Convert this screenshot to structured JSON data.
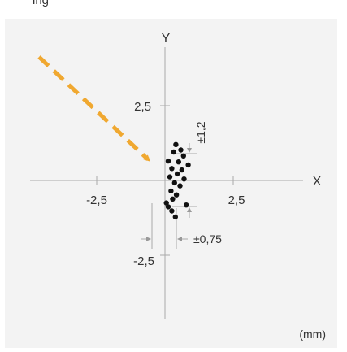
{
  "header_fragment": "ing",
  "chart_data": {
    "type": "scatter",
    "title": "",
    "xlabel": "X",
    "ylabel": "Y",
    "unit_label": "(mm)",
    "xlim": [
      -4.5,
      6.0
    ],
    "ylim": [
      -7.5,
      7.2
    ],
    "grid": false,
    "x_ticks": [
      {
        "value": -2.5,
        "label": "-2,5"
      },
      {
        "value": 2.5,
        "label": "2,5"
      }
    ],
    "y_ticks": [
      {
        "value": 2.5,
        "label": "2,5"
      },
      {
        "value": -2.5,
        "label": "-2,5"
      }
    ],
    "points": [
      {
        "x": 0.4,
        "y": 1.2
      },
      {
        "x": 0.58,
        "y": 1.02
      },
      {
        "x": 0.32,
        "y": 0.95
      },
      {
        "x": 0.68,
        "y": 0.82
      },
      {
        "x": 0.12,
        "y": 0.65
      },
      {
        "x": 0.5,
        "y": 0.62
      },
      {
        "x": 0.85,
        "y": 0.52
      },
      {
        "x": 0.25,
        "y": 0.4
      },
      {
        "x": 0.62,
        "y": 0.35
      },
      {
        "x": 0.45,
        "y": 0.22
      },
      {
        "x": 0.18,
        "y": 0.12
      },
      {
        "x": 0.7,
        "y": 0.05
      },
      {
        "x": 0.35,
        "y": -0.08
      },
      {
        "x": 0.55,
        "y": -0.18
      },
      {
        "x": 0.22,
        "y": -0.35
      },
      {
        "x": 0.42,
        "y": -0.48
      },
      {
        "x": 0.28,
        "y": -0.62
      },
      {
        "x": 0.05,
        "y": -0.75
      },
      {
        "x": 0.12,
        "y": -0.88
      },
      {
        "x": 0.78,
        "y": -0.82
      },
      {
        "x": 0.25,
        "y": -1.02
      },
      {
        "x": 0.38,
        "y": -1.22
      }
    ],
    "spread_x": {
      "label": "±0,75",
      "min": 0.0,
      "max": 0.75
    },
    "spread_y": {
      "label": "±1,2",
      "min": -1.2,
      "max": 1.2
    },
    "point_color": "#111111",
    "arrow_color": "#f0a830",
    "plot_background": "#f3f3f3",
    "axis_color": "#aaaaaa"
  }
}
